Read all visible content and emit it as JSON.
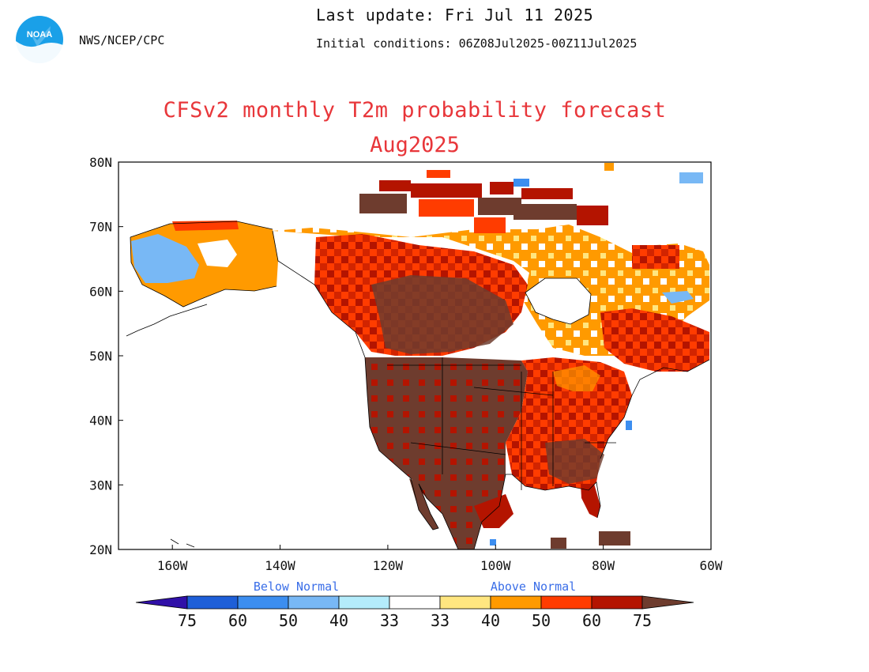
{
  "header": {
    "org": "NWS/NCEP/CPC",
    "update": "Last update: Fri Jul 11 2025",
    "initial_conditions": "Initial conditions: 06Z08Jul2025-00Z11Jul2025",
    "logo_text": "NOAA"
  },
  "title": {
    "line1": "CFSv2 monthly T2m probability forecast",
    "line2": "Aug2025"
  },
  "axes": {
    "lat_labels": [
      "80N",
      "70N",
      "60N",
      "50N",
      "40N",
      "30N",
      "20N"
    ],
    "lon_labels": [
      "160W",
      "140W",
      "120W",
      "100W",
      "80W",
      "60W"
    ],
    "lat_range": [
      20,
      80
    ],
    "lon_range": [
      -170,
      -60
    ]
  },
  "legend": {
    "below_label": "Below Normal",
    "above_label": "Above Normal",
    "tick_labels": [
      "75",
      "60",
      "50",
      "40",
      "33",
      "33",
      "40",
      "50",
      "60",
      "75"
    ],
    "colors": {
      "below_75": "#3010a8",
      "below_60_75": "#1e5fd8",
      "below_50_60": "#3c8ef0",
      "below_40_50": "#78b8f5",
      "below_33_40": "#b4ecfb",
      "normal": "#ffffff",
      "above_33_40": "#ffe680",
      "above_40_50": "#ff9a00",
      "above_50_60": "#ff3c00",
      "above_60_75": "#b41400",
      "above_75": "#6e3c2e"
    }
  }
}
